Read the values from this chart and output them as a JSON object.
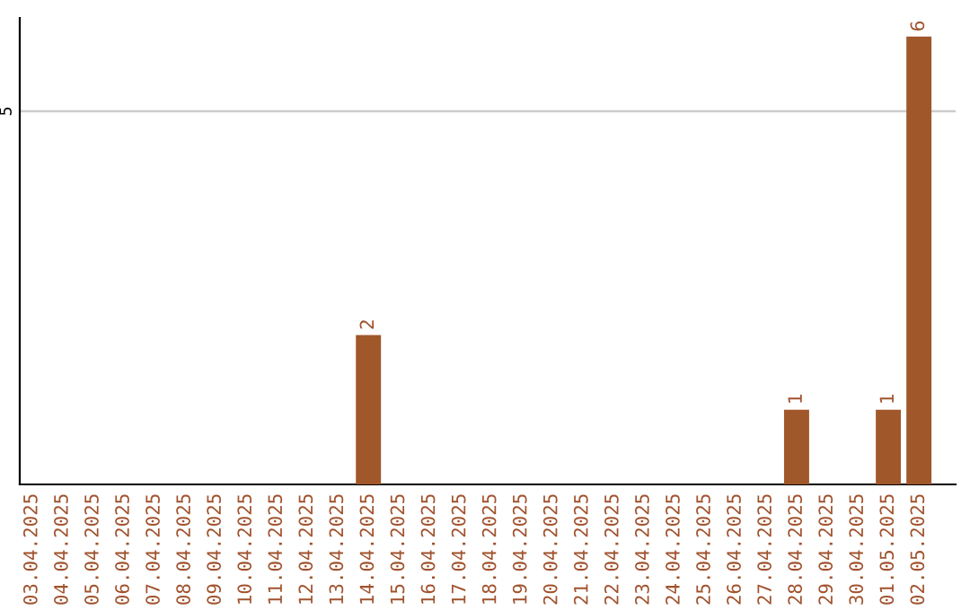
{
  "chart_data": {
    "type": "bar",
    "categories": [
      "03.04.2025",
      "04.04.2025",
      "05.04.2025",
      "06.04.2025",
      "07.04.2025",
      "08.04.2025",
      "09.04.2025",
      "10.04.2025",
      "11.04.2025",
      "12.04.2025",
      "13.04.2025",
      "14.04.2025",
      "15.04.2025",
      "16.04.2025",
      "17.04.2025",
      "18.04.2025",
      "19.04.2025",
      "20.04.2025",
      "21.04.2025",
      "22.04.2025",
      "23.04.2025",
      "24.04.2025",
      "25.04.2025",
      "26.04.2025",
      "27.04.2025",
      "28.04.2025",
      "29.04.2025",
      "30.04.2025",
      "01.05.2025",
      "02.05.2025"
    ],
    "values": [
      0,
      0,
      0,
      0,
      0,
      0,
      0,
      0,
      0,
      0,
      0,
      2,
      0,
      0,
      0,
      0,
      0,
      0,
      0,
      0,
      0,
      0,
      0,
      0,
      0,
      1,
      0,
      0,
      1,
      6
    ],
    "value_labels": [
      null,
      null,
      null,
      null,
      null,
      null,
      null,
      null,
      null,
      null,
      null,
      "2",
      null,
      null,
      null,
      null,
      null,
      null,
      null,
      null,
      null,
      null,
      null,
      null,
      null,
      "1",
      null,
      null,
      "1",
      "6"
    ],
    "color": "#a0572a",
    "ylim": [
      0,
      6.25
    ],
    "yticks": [
      5
    ],
    "grid": "y",
    "legend": false
  }
}
